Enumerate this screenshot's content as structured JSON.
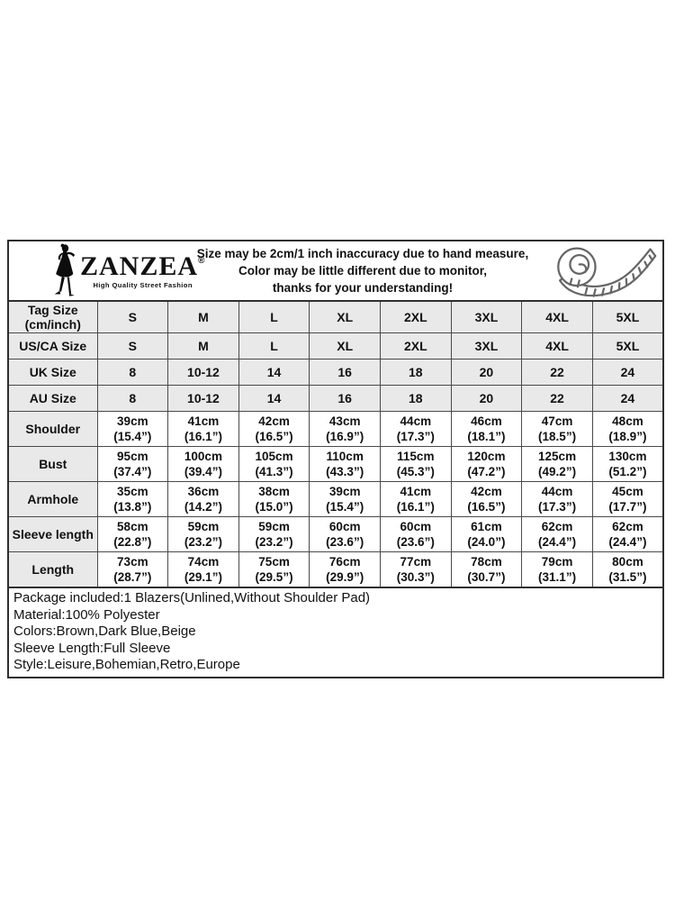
{
  "header": {
    "brand": "ZANZEA",
    "registered": "®",
    "tagline": "High Quality Street Fashion",
    "disclaimer_lines": [
      "Size may be 2cm/1 inch inaccuracy due to hand measure,",
      "Color may be little different due to monitor,",
      "thanks for your understanding!"
    ]
  },
  "table": {
    "size_rows": [
      {
        "label_lines": [
          "Tag Size",
          "(cm/inch)"
        ],
        "values": [
          "S",
          "M",
          "L",
          "XL",
          "2XL",
          "3XL",
          "4XL",
          "5XL"
        ]
      },
      {
        "label_lines": [
          "US/CA Size"
        ],
        "values": [
          "S",
          "M",
          "L",
          "XL",
          "2XL",
          "3XL",
          "4XL",
          "5XL"
        ]
      },
      {
        "label_lines": [
          "UK Size"
        ],
        "values": [
          "8",
          "10-12",
          "14",
          "16",
          "18",
          "20",
          "22",
          "24"
        ]
      },
      {
        "label_lines": [
          "AU Size"
        ],
        "values": [
          "8",
          "10-12",
          "14",
          "16",
          "18",
          "20",
          "22",
          "24"
        ]
      }
    ],
    "measure_rows": [
      {
        "label": "Shoulder",
        "cm": [
          "39cm",
          "41cm",
          "42cm",
          "43cm",
          "44cm",
          "46cm",
          "47cm",
          "48cm"
        ],
        "inch": [
          "(15.4”)",
          "(16.1”)",
          "(16.5”)",
          "(16.9”)",
          "(17.3”)",
          "(18.1”)",
          "(18.5”)",
          "(18.9”)"
        ]
      },
      {
        "label": "Bust",
        "cm": [
          "95cm",
          "100cm",
          "105cm",
          "110cm",
          "115cm",
          "120cm",
          "125cm",
          "130cm"
        ],
        "inch": [
          "(37.4”)",
          "(39.4”)",
          "(41.3”)",
          "(43.3”)",
          "(45.3”)",
          "(47.2”)",
          "(49.2”)",
          "(51.2”)"
        ]
      },
      {
        "label": "Armhole",
        "cm": [
          "35cm",
          "36cm",
          "38cm",
          "39cm",
          "41cm",
          "42cm",
          "44cm",
          "45cm"
        ],
        "inch": [
          "(13.8”)",
          "(14.2”)",
          "(15.0”)",
          "(15.4”)",
          "(16.1”)",
          "(16.5”)",
          "(17.3”)",
          "(17.7”)"
        ]
      },
      {
        "label": "Sleeve length",
        "cm": [
          "58cm",
          "59cm",
          "59cm",
          "60cm",
          "60cm",
          "61cm",
          "62cm",
          "62cm"
        ],
        "inch": [
          "(22.8”)",
          "(23.2”)",
          "(23.2”)",
          "(23.6”)",
          "(23.6”)",
          "(24.0”)",
          "(24.4”)",
          "(24.4”)"
        ]
      },
      {
        "label": "Length",
        "cm": [
          "73cm",
          "74cm",
          "75cm",
          "76cm",
          "77cm",
          "78cm",
          "79cm",
          "80cm"
        ],
        "inch": [
          "(28.7”)",
          "(29.1”)",
          "(29.5”)",
          "(29.9”)",
          "(30.3”)",
          "(30.7”)",
          "(31.1”)",
          "(31.5”)"
        ]
      }
    ]
  },
  "details": {
    "lines": [
      "Package included:1 Blazers(Unlined,Without Shoulder Pad)",
      "Material:100% Polyester",
      "Colors:Brown,Dark Blue,Beige",
      "Sleeve Length:Full Sleeve",
      "Style:Leisure,Bohemian,Retro,Europe"
    ]
  },
  "colors": {
    "cell_gray": "#e9e9e9",
    "grid_border": "#4a4a4a",
    "outer_border": "#2e2e2e",
    "tape_icon_gray": "#666666",
    "text": "#111111"
  }
}
